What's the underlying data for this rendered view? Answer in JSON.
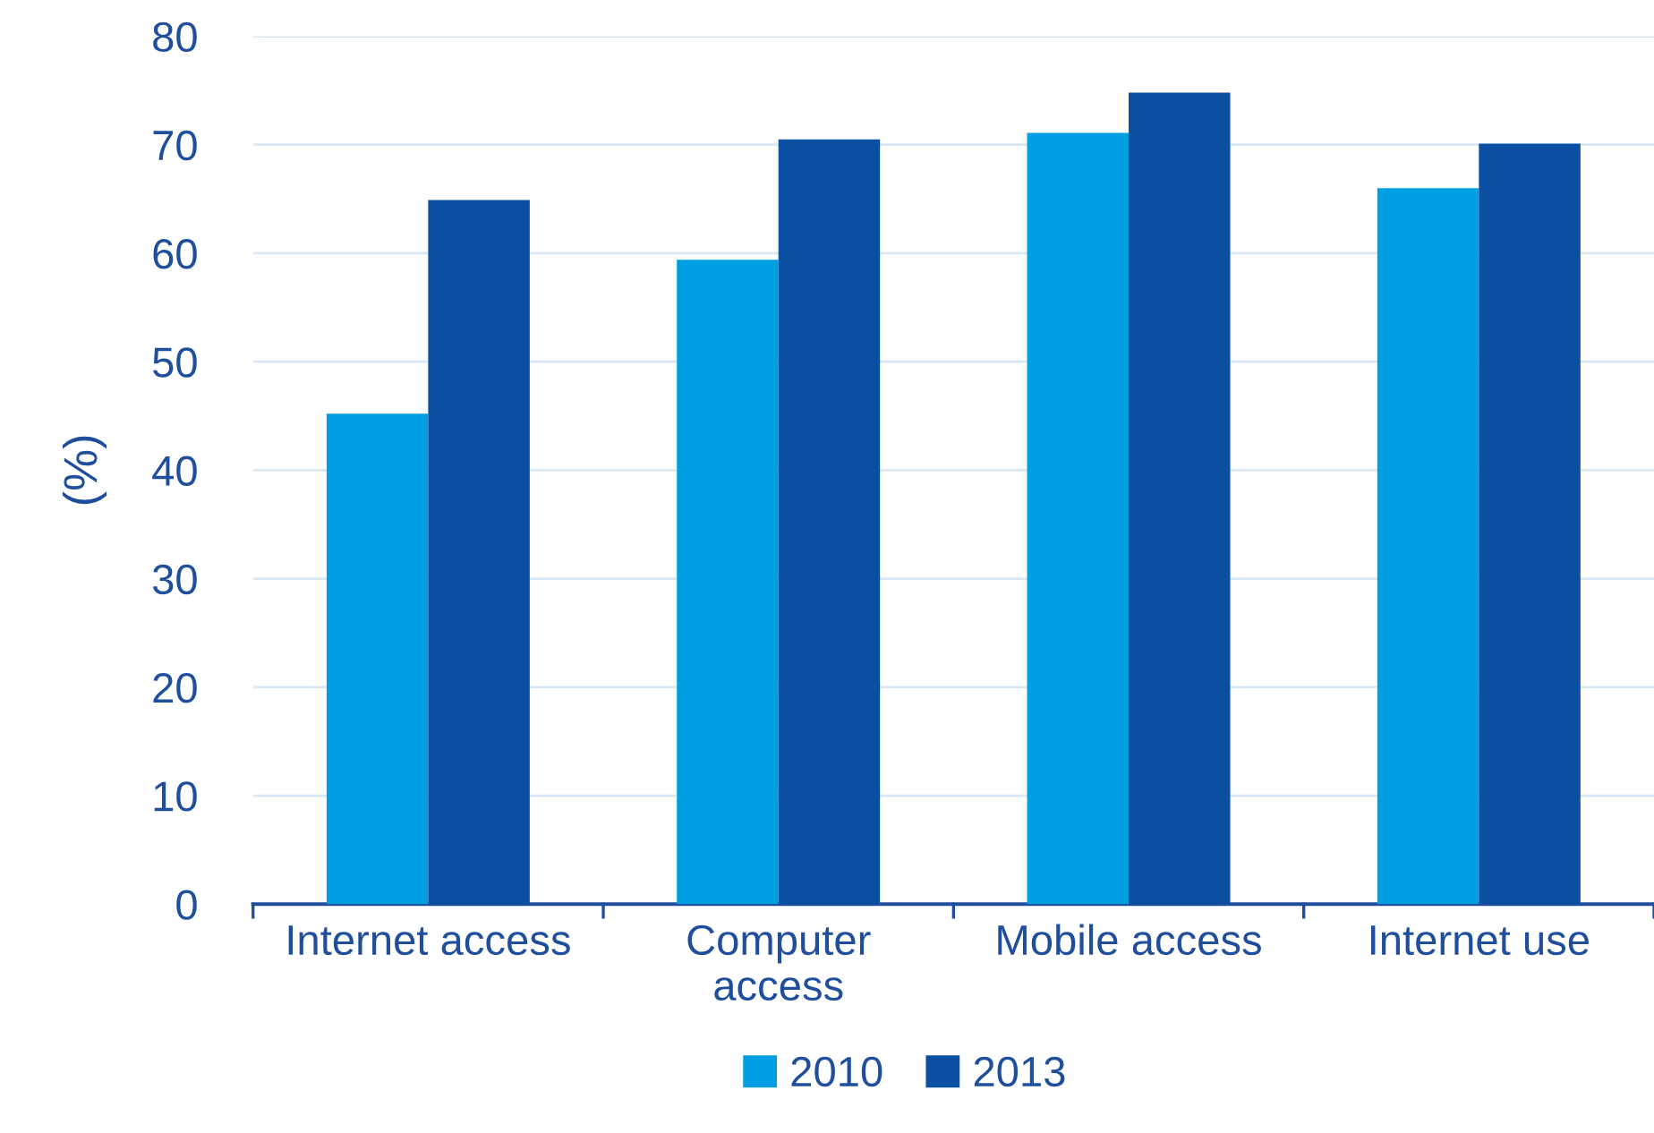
{
  "chart_data": {
    "type": "bar",
    "ylabel": "(%)",
    "categories": [
      "Internet access",
      "Computer\naccess",
      "Mobile access",
      "Internet use"
    ],
    "series": [
      {
        "name": "2010",
        "color": "#009ee2",
        "values": [
          45.2,
          59.4,
          71.1,
          66.0
        ]
      },
      {
        "name": "2013",
        "color": "#0b4fa2",
        "values": [
          64.9,
          70.5,
          74.8,
          70.1
        ]
      }
    ],
    "ylim": [
      0,
      80
    ],
    "yticks": [
      0,
      10,
      20,
      30,
      40,
      50,
      60,
      70,
      80
    ],
    "grid": "y",
    "legend": "bottom"
  }
}
